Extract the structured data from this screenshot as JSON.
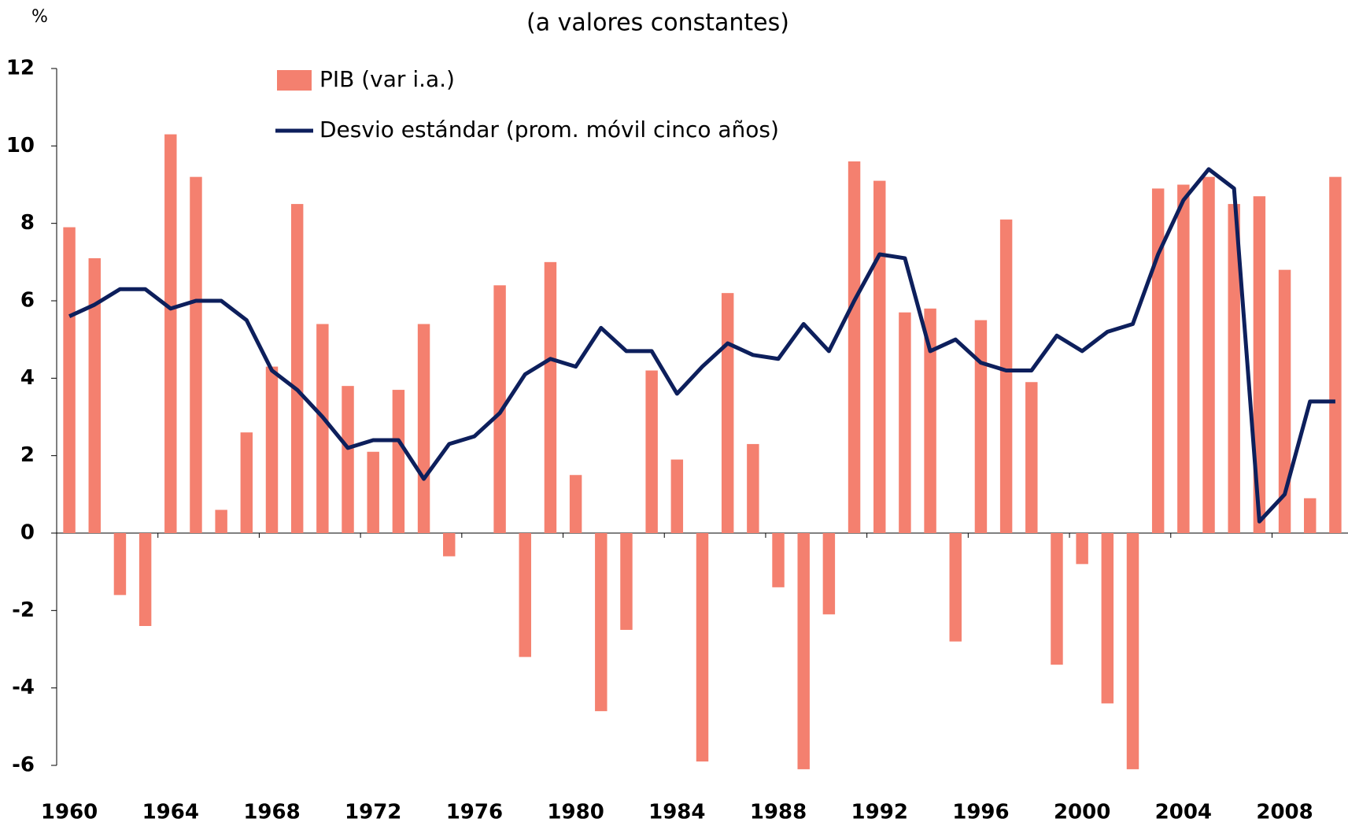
{
  "chart_data": {
    "type": "bar-line",
    "subtitle": "(a valores constantes)",
    "y_unit": "%",
    "categories": [
      "1960",
      null,
      null,
      null,
      "1964",
      null,
      null,
      null,
      "1968",
      null,
      null,
      null,
      "1972",
      null,
      null,
      null,
      "1976",
      null,
      null,
      null,
      "1980",
      null,
      null,
      null,
      "1984",
      null,
      null,
      null,
      "1988",
      null,
      null,
      null,
      "1992",
      null,
      null,
      null,
      "1996",
      null,
      null,
      null,
      "2000",
      null,
      null,
      null,
      "2004",
      null,
      null,
      null,
      "2008",
      null,
      null
    ],
    "series": [
      {
        "name": "PIB (var i.a.)",
        "type": "bar",
        "color": "#f4806f",
        "values": [
          7.9,
          7.1,
          -1.6,
          -2.4,
          10.3,
          9.2,
          0.6,
          2.6,
          4.3,
          8.5,
          5.4,
          3.8,
          2.1,
          3.7,
          5.4,
          -0.6,
          0.0,
          6.4,
          -3.2,
          7.0,
          1.5,
          -4.6,
          -2.5,
          4.2,
          1.9,
          -5.9,
          6.2,
          2.3,
          -1.4,
          -6.1,
          -2.1,
          9.6,
          9.1,
          5.7,
          5.8,
          -2.8,
          5.5,
          8.1,
          3.9,
          -3.4,
          -0.8,
          -4.4,
          -6.1,
          8.9,
          9.0,
          9.2,
          8.5,
          8.7,
          6.8,
          0.9,
          9.2
        ]
      },
      {
        "name": "Desvio estándar (prom. móvil cinco años)",
        "type": "line",
        "color": "#0d1f5c",
        "values": [
          5.6,
          5.9,
          6.3,
          6.3,
          5.8,
          6.0,
          6.0,
          5.5,
          4.2,
          3.7,
          3.0,
          2.2,
          2.4,
          2.4,
          1.4,
          2.3,
          2.5,
          3.1,
          4.1,
          4.5,
          4.3,
          5.3,
          4.7,
          4.7,
          3.6,
          4.3,
          4.9,
          4.6,
          4.5,
          5.4,
          4.7,
          6.0,
          7.2,
          7.1,
          4.7,
          5.0,
          4.4,
          4.2,
          4.2,
          5.1,
          4.7,
          5.2,
          5.4,
          7.2,
          8.6,
          9.4,
          8.9,
          0.3,
          1.0,
          3.4,
          3.4
        ]
      }
    ],
    "ylim": [
      -6,
      12
    ],
    "yticks": [
      12,
      10,
      8,
      6,
      4,
      2,
      0,
      -2,
      -4,
      -6
    ]
  }
}
